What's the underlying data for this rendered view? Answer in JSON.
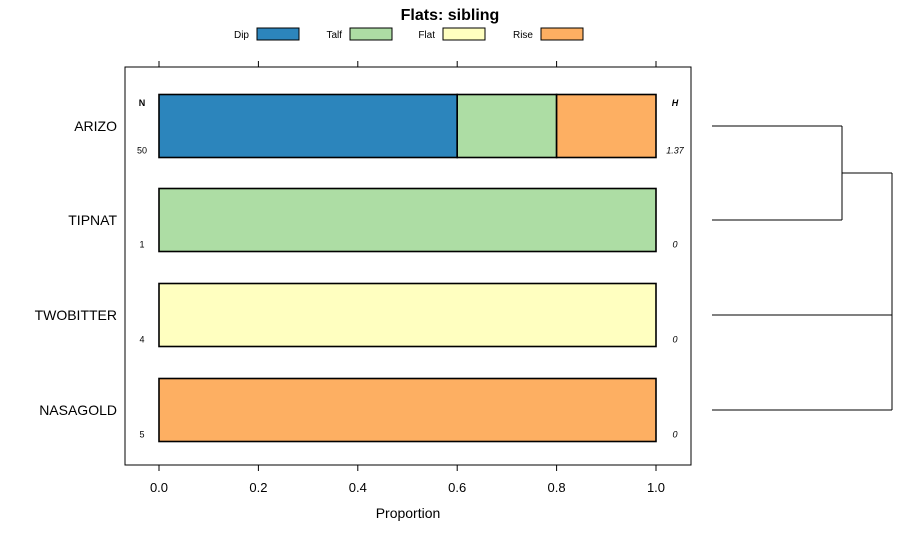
{
  "chart_data": {
    "type": "bar",
    "orientation": "horizontal",
    "stacked": true,
    "title": "Flats: sibling",
    "xlabel": "Proportion",
    "xlim": [
      -0.07,
      1.07
    ],
    "xticks": [
      "0.0",
      "0.2",
      "0.4",
      "0.6",
      "0.8",
      "1.0"
    ],
    "legend": {
      "placement": "top",
      "entries": [
        {
          "name": "Dip",
          "color": "#2c85bc"
        },
        {
          "name": "Talf",
          "color": "#addda4"
        },
        {
          "name": "Flat",
          "color": "#ffffc0"
        },
        {
          "name": "Rise",
          "color": "#fdaf62"
        }
      ]
    },
    "n_header": "N",
    "h_header": "H",
    "categories": [
      {
        "label": "ARIZO",
        "n": "50",
        "h": "1.37",
        "segments": [
          0.6,
          0.2,
          0,
          0.2
        ]
      },
      {
        "label": "TIPNAT",
        "n": "1",
        "h": "0",
        "segments": [
          0,
          1,
          0,
          0
        ]
      },
      {
        "label": "TWOBITTER",
        "n": "4",
        "h": "0",
        "segments": [
          0,
          0,
          1,
          0
        ]
      },
      {
        "label": "NASAGOLD",
        "n": "5",
        "h": "0",
        "segments": [
          0,
          0,
          0,
          1
        ]
      }
    ],
    "dendrogram": true
  }
}
